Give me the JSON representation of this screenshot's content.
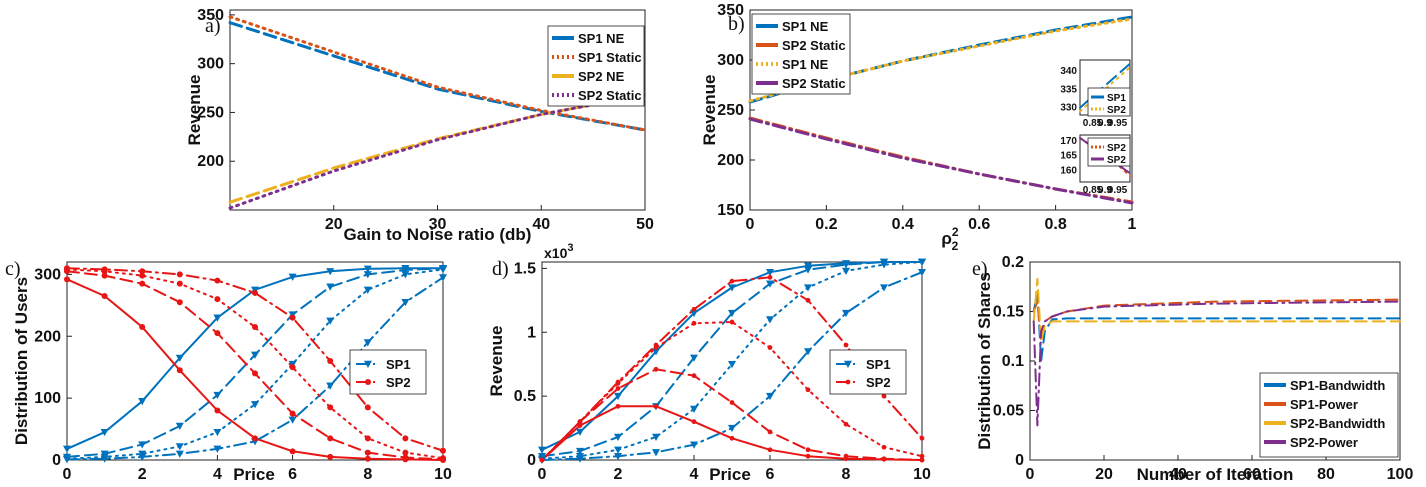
{
  "colors": {
    "blue": "#0072BD",
    "orange": "#D95319",
    "yellow": "#EDB120",
    "purple": "#7E2F8E",
    "red": "#E81515"
  },
  "chart_data": [
    {
      "panel": "a)",
      "type": "line",
      "xlabel": "Gain to Noise ratio (db)",
      "ylabel": "Revenue",
      "xlim": [
        10,
        50
      ],
      "ylim": [
        150,
        355
      ],
      "xticks": [
        "20",
        "30",
        "40",
        "50"
      ],
      "yticks": [
        "200",
        "250",
        "300",
        "350"
      ],
      "legend_position": "top-right",
      "series": [
        {
          "name": "SP1 NE",
          "style": "dashed",
          "color": "#0072BD",
          "x": [
            10,
            20,
            30,
            40,
            50
          ],
          "y": [
            342,
            308,
            274,
            251,
            232
          ]
        },
        {
          "name": "SP1 Static",
          "style": "dotted",
          "color": "#D95319",
          "x": [
            10,
            20,
            30,
            40,
            50
          ],
          "y": [
            348,
            312,
            276,
            252,
            232
          ]
        },
        {
          "name": "SP2 NE",
          "style": "dashed",
          "color": "#EDB120",
          "x": [
            10,
            20,
            30,
            40,
            50
          ],
          "y": [
            158,
            193,
            223,
            248,
            268
          ]
        },
        {
          "name": "SP2 Static",
          "style": "dotted",
          "color": "#7E2F8E",
          "x": [
            10,
            20,
            30,
            40,
            50
          ],
          "y": [
            152,
            190,
            222,
            248,
            268
          ]
        }
      ]
    },
    {
      "panel": "b)",
      "type": "line",
      "xlabel": "ρ",
      "xlabel_sub": "2",
      "xlabel_sup": "2",
      "ylabel": "Revenue",
      "xlim": [
        0,
        1
      ],
      "ylim": [
        150,
        350
      ],
      "xticks": [
        "0",
        "0.2",
        "0.4",
        "0.6",
        "0.8",
        "1"
      ],
      "yticks": [
        "150",
        "200",
        "250",
        "300",
        "350"
      ],
      "legend_position": "top-left",
      "series": [
        {
          "name": "SP1 NE",
          "style": "dashed",
          "color": "#0072BD",
          "x": [
            0,
            0.2,
            0.4,
            0.6,
            0.8,
            1
          ],
          "y": [
            258,
            280,
            299,
            315,
            330,
            343
          ]
        },
        {
          "name": "SP2 Static",
          "style": "dashdot",
          "color": "#D95319",
          "x": [
            0,
            0.2,
            0.4,
            0.6,
            0.8,
            1
          ],
          "y": [
            242,
            222,
            203,
            186,
            171,
            158
          ]
        },
        {
          "name": "SP1 NE",
          "style": "dotted",
          "color": "#EDB120",
          "x": [
            0,
            0.2,
            0.4,
            0.6,
            0.8,
            1
          ],
          "y": [
            259,
            280,
            299,
            314,
            329,
            341
          ]
        },
        {
          "name": "SP2 Static",
          "style": "dashdot",
          "color": "#7E2F8E",
          "x": [
            0,
            0.2,
            0.4,
            0.6,
            0.8,
            1
          ],
          "y": [
            241,
            221,
            202,
            186,
            171,
            157
          ]
        }
      ],
      "insets": [
        {
          "xlim": [
            0.8,
            1
          ],
          "ylim": [
            328,
            343
          ],
          "xticks": [
            "0.85",
            "0.9",
            "0.95"
          ],
          "yticks": [
            "330",
            "335",
            "340"
          ],
          "series": [
            {
              "name": "SP1",
              "style": "dashed",
              "color": "#0072BD",
              "x": [
                0.8,
                0.85,
                0.9,
                0.95,
                1
              ],
              "y": [
                330,
                333,
                336,
                339,
                342
              ]
            },
            {
              "name": "SP2",
              "style": "dotted",
              "color": "#EDB120",
              "x": [
                0.8,
                0.85,
                0.9,
                0.95,
                1
              ],
              "y": [
                329,
                332,
                335,
                338,
                341
              ]
            }
          ]
        },
        {
          "xlim": [
            0.8,
            1
          ],
          "ylim": [
            156,
            172
          ],
          "xticks": [
            "0.85",
            "0.9",
            "0.95"
          ],
          "yticks": [
            "160",
            "165",
            "170"
          ],
          "series": [
            {
              "name": "SP2",
              "style": "dotted",
              "color": "#D95319",
              "x": [
                0.8,
                0.85,
                0.9,
                0.95,
                1
              ],
              "y": [
                171,
                168,
                165,
                162,
                158
              ]
            },
            {
              "name": "SP2",
              "style": "dashdot",
              "color": "#7E2F8E",
              "x": [
                0.8,
                0.85,
                0.9,
                0.95,
                1
              ],
              "y": [
                171,
                168,
                165,
                162,
                159
              ]
            }
          ]
        }
      ]
    },
    {
      "panel": "c)",
      "type": "line",
      "xlabel": "Price",
      "ylabel": "Distribution of Users",
      "xlim": [
        0,
        10
      ],
      "ylim": [
        0,
        320
      ],
      "xticks": [
        "0",
        "2",
        "4",
        "6",
        "8",
        "10"
      ],
      "yticks": [
        "0",
        "100",
        "200",
        "300"
      ],
      "legend_position": "center-right",
      "legend": [
        {
          "name": "SP1",
          "color": "#0072BD",
          "marker": "triangle-down"
        },
        {
          "name": "SP2",
          "color": "#E81515",
          "marker": "circle"
        }
      ],
      "series": [
        {
          "group": "SP1",
          "style": "solid",
          "color": "#0072BD",
          "x": [
            0,
            1,
            2,
            3,
            4,
            5,
            6,
            7,
            8,
            9,
            10
          ],
          "y": [
            18,
            45,
            95,
            165,
            230,
            275,
            296,
            305,
            309,
            310,
            310
          ]
        },
        {
          "group": "SP1",
          "style": "dashed",
          "color": "#0072BD",
          "x": [
            0,
            1,
            2,
            3,
            4,
            5,
            6,
            7,
            8,
            9,
            10
          ],
          "y": [
            5,
            10,
            25,
            55,
            105,
            170,
            235,
            280,
            300,
            307,
            310
          ]
        },
        {
          "group": "SP1",
          "style": "dotted",
          "color": "#0072BD",
          "x": [
            0,
            1,
            2,
            3,
            4,
            5,
            6,
            7,
            8,
            9,
            10
          ],
          "y": [
            2,
            5,
            10,
            22,
            45,
            90,
            155,
            225,
            275,
            300,
            308
          ]
        },
        {
          "group": "SP1",
          "style": "dashdot",
          "color": "#0072BD",
          "x": [
            0,
            1,
            2,
            3,
            4,
            5,
            6,
            7,
            8,
            9,
            10
          ],
          "y": [
            1,
            2,
            5,
            10,
            18,
            30,
            65,
            120,
            190,
            255,
            295
          ]
        },
        {
          "group": "SP2",
          "style": "solid",
          "color": "#E81515",
          "x": [
            0,
            1,
            2,
            3,
            4,
            5,
            6,
            7,
            8,
            9,
            10
          ],
          "y": [
            292,
            265,
            215,
            145,
            80,
            35,
            14,
            5,
            2,
            1,
            0
          ]
        },
        {
          "group": "SP2",
          "style": "dashed",
          "color": "#E81515",
          "x": [
            0,
            1,
            2,
            3,
            4,
            5,
            6,
            7,
            8,
            9,
            10
          ],
          "y": [
            305,
            298,
            285,
            255,
            205,
            140,
            75,
            35,
            12,
            4,
            1
          ]
        },
        {
          "group": "SP2",
          "style": "dotted",
          "color": "#E81515",
          "x": [
            0,
            1,
            2,
            3,
            4,
            5,
            6,
            7,
            8,
            9,
            10
          ],
          "y": [
            308,
            305,
            298,
            285,
            260,
            215,
            150,
            85,
            35,
            12,
            3
          ]
        },
        {
          "group": "SP2",
          "style": "dashdot",
          "color": "#E81515",
          "x": [
            0,
            1,
            2,
            3,
            4,
            5,
            6,
            7,
            8,
            9,
            10
          ],
          "y": [
            310,
            308,
            305,
            300,
            290,
            270,
            230,
            160,
            85,
            35,
            15
          ]
        }
      ]
    },
    {
      "panel": "d)",
      "type": "line",
      "xlabel": "Price",
      "ylabel": "Revenue",
      "multiplier_label": "x10",
      "multiplier_exp": "3",
      "xlim": [
        0,
        10
      ],
      "ylim": [
        0,
        1.55
      ],
      "xticks": [
        "0",
        "2",
        "4",
        "6",
        "8",
        "10"
      ],
      "yticks": [
        "0",
        "0.5",
        "1",
        "1.5"
      ],
      "legend_position": "center-right",
      "legend": [
        {
          "name": "SP1",
          "color": "#0072BD",
          "marker": "triangle-down"
        },
        {
          "name": "SP2",
          "color": "#E81515",
          "marker": "star"
        }
      ],
      "series": [
        {
          "group": "SP1",
          "style": "solid",
          "color": "#0072BD",
          "x": [
            0,
            1,
            2,
            3,
            4,
            5,
            6,
            7,
            8,
            9,
            10
          ],
          "y": [
            0.08,
            0.22,
            0.5,
            0.85,
            1.15,
            1.35,
            1.47,
            1.52,
            1.54,
            1.55,
            1.55
          ]
        },
        {
          "group": "SP1",
          "style": "dashed",
          "color": "#0072BD",
          "x": [
            0,
            1,
            2,
            3,
            4,
            5,
            6,
            7,
            8,
            9,
            10
          ],
          "y": [
            0.03,
            0.07,
            0.18,
            0.42,
            0.8,
            1.15,
            1.38,
            1.49,
            1.53,
            1.55,
            1.55
          ]
        },
        {
          "group": "SP1",
          "style": "dotted",
          "color": "#0072BD",
          "x": [
            0,
            1,
            2,
            3,
            4,
            5,
            6,
            7,
            8,
            9,
            10
          ],
          "y": [
            0.01,
            0.03,
            0.08,
            0.18,
            0.4,
            0.75,
            1.1,
            1.35,
            1.48,
            1.53,
            1.55
          ]
        },
        {
          "group": "SP1",
          "style": "dashdot",
          "color": "#0072BD",
          "x": [
            0,
            1,
            2,
            3,
            4,
            5,
            6,
            7,
            8,
            9,
            10
          ],
          "y": [
            0,
            0.01,
            0.03,
            0.06,
            0.12,
            0.25,
            0.5,
            0.85,
            1.15,
            1.35,
            1.47
          ]
        },
        {
          "group": "SP2",
          "style": "solid",
          "color": "#E81515",
          "x": [
            0,
            1,
            2,
            3,
            4,
            5,
            6,
            7,
            8,
            9,
            10
          ],
          "y": [
            0,
            0.27,
            0.42,
            0.42,
            0.3,
            0.17,
            0.08,
            0.03,
            0.01,
            0.005,
            0
          ]
        },
        {
          "group": "SP2",
          "style": "dashed",
          "color": "#E81515",
          "x": [
            0,
            1,
            2,
            3,
            4,
            5,
            6,
            7,
            8,
            9,
            10
          ],
          "y": [
            0,
            0.3,
            0.56,
            0.71,
            0.66,
            0.45,
            0.22,
            0.08,
            0.03,
            0.01,
            0
          ]
        },
        {
          "group": "SP2",
          "style": "dotted",
          "color": "#E81515",
          "x": [
            0,
            1,
            2,
            3,
            4,
            5,
            6,
            7,
            8,
            9,
            10
          ],
          "y": [
            0,
            0.3,
            0.6,
            0.88,
            1.07,
            1.08,
            0.88,
            0.55,
            0.28,
            0.1,
            0.03
          ]
        },
        {
          "group": "SP2",
          "style": "dashdot",
          "color": "#E81515",
          "x": [
            0,
            1,
            2,
            3,
            4,
            5,
            6,
            7,
            8,
            9,
            10
          ],
          "y": [
            0,
            0.3,
            0.61,
            0.9,
            1.18,
            1.4,
            1.43,
            1.25,
            0.9,
            0.5,
            0.17
          ]
        }
      ]
    },
    {
      "panel": "e)",
      "type": "line",
      "xlabel": "Number of Iteration",
      "ylabel": "Distribution of Shares",
      "xlim": [
        0,
        100
      ],
      "ylim": [
        0,
        0.2
      ],
      "xticks": [
        "0",
        "20",
        "40",
        "60",
        "80",
        "100"
      ],
      "yticks": [
        "0",
        "0.05",
        "0.1",
        "0.15",
        "0.2"
      ],
      "legend_position": "bottom-right",
      "series": [
        {
          "name": "SP1-Bandwidth",
          "style": "dashed",
          "color": "#0072BD",
          "x": [
            1,
            2,
            3,
            4,
            6,
            10,
            20,
            50,
            100
          ],
          "y": [
            0.15,
            0.17,
            0.1,
            0.13,
            0.142,
            0.143,
            0.143,
            0.143,
            0.143
          ]
        },
        {
          "name": "SP1-Power",
          "style": "dashed",
          "color": "#D95319",
          "x": [
            1,
            2,
            3,
            4,
            6,
            10,
            20,
            50,
            100
          ],
          "y": [
            0.15,
            0.16,
            0.12,
            0.14,
            0.145,
            0.15,
            0.156,
            0.16,
            0.162
          ]
        },
        {
          "name": "SP2-Bandwidth",
          "style": "dashed",
          "color": "#EDB120",
          "x": [
            1,
            2,
            3,
            4,
            6,
            10,
            20,
            50,
            100
          ],
          "y": [
            0.14,
            0.183,
            0.12,
            0.135,
            0.14,
            0.14,
            0.14,
            0.14,
            0.14
          ]
        },
        {
          "name": "SP2-Power",
          "style": "dashdot",
          "color": "#7E2F8E",
          "x": [
            1,
            2,
            3,
            4,
            6,
            10,
            20,
            50,
            100
          ],
          "y": [
            0.14,
            0.035,
            0.13,
            0.14,
            0.145,
            0.15,
            0.155,
            0.158,
            0.16
          ]
        }
      ]
    }
  ]
}
